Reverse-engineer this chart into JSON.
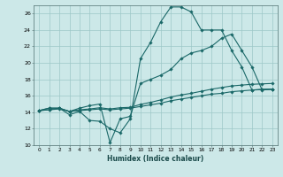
{
  "xlabel": "Humidex (Indice chaleur)",
  "bg_color": "#cce8e8",
  "grid_color": "#9dc8c8",
  "line_color": "#1a6868",
  "xlim": [
    -0.5,
    23.5
  ],
  "ylim": [
    10,
    27
  ],
  "xticks": [
    0,
    1,
    2,
    3,
    4,
    5,
    6,
    7,
    8,
    9,
    10,
    11,
    12,
    13,
    14,
    15,
    16,
    17,
    18,
    19,
    20,
    21,
    22,
    23
  ],
  "yticks": [
    10,
    12,
    14,
    16,
    18,
    20,
    22,
    24,
    26
  ],
  "line1_x": [
    0,
    1,
    2,
    3,
    4,
    5,
    6,
    7,
    8,
    9,
    10,
    11,
    12,
    13,
    14,
    15,
    16,
    17,
    18,
    19,
    20,
    21,
    22,
    23
  ],
  "line1_y": [
    14.2,
    14.5,
    14.5,
    13.7,
    14.1,
    13.0,
    12.9,
    12.0,
    11.5,
    13.2,
    20.5,
    22.5,
    25.0,
    26.8,
    26.8,
    26.2,
    24.0,
    24.0,
    24.0,
    21.5,
    19.5,
    16.7,
    16.8,
    16.8
  ],
  "line2_x": [
    0,
    1,
    2,
    3,
    4,
    5,
    6,
    7,
    8,
    9,
    10,
    11,
    12,
    13,
    14,
    15,
    16,
    17,
    18,
    19,
    20,
    21,
    22,
    23
  ],
  "line2_y": [
    14.2,
    14.5,
    14.5,
    14.1,
    14.5,
    14.8,
    15.0,
    10.3,
    13.2,
    13.5,
    17.5,
    18.0,
    18.5,
    19.2,
    20.5,
    21.2,
    21.5,
    22.0,
    23.0,
    23.5,
    21.5,
    19.5,
    16.7,
    16.8
  ],
  "line3_x": [
    0,
    1,
    2,
    3,
    4,
    5,
    6,
    7,
    8,
    9,
    10,
    11,
    12,
    13,
    14,
    15,
    16,
    17,
    18,
    19,
    20,
    21,
    22,
    23
  ],
  "line3_y": [
    14.2,
    14.3,
    14.4,
    14.1,
    14.2,
    14.3,
    14.4,
    14.3,
    14.4,
    14.5,
    14.7,
    14.9,
    15.1,
    15.4,
    15.6,
    15.8,
    16.0,
    16.2,
    16.3,
    16.5,
    16.6,
    16.7,
    16.75,
    16.8
  ],
  "line4_x": [
    0,
    1,
    2,
    3,
    4,
    5,
    6,
    7,
    8,
    9,
    10,
    11,
    12,
    13,
    14,
    15,
    16,
    17,
    18,
    19,
    20,
    21,
    22,
    23
  ],
  "line4_y": [
    14.2,
    14.3,
    14.5,
    14.1,
    14.3,
    14.4,
    14.55,
    14.4,
    14.55,
    14.6,
    14.95,
    15.2,
    15.5,
    15.85,
    16.1,
    16.3,
    16.55,
    16.8,
    17.0,
    17.2,
    17.3,
    17.4,
    17.45,
    17.5
  ]
}
